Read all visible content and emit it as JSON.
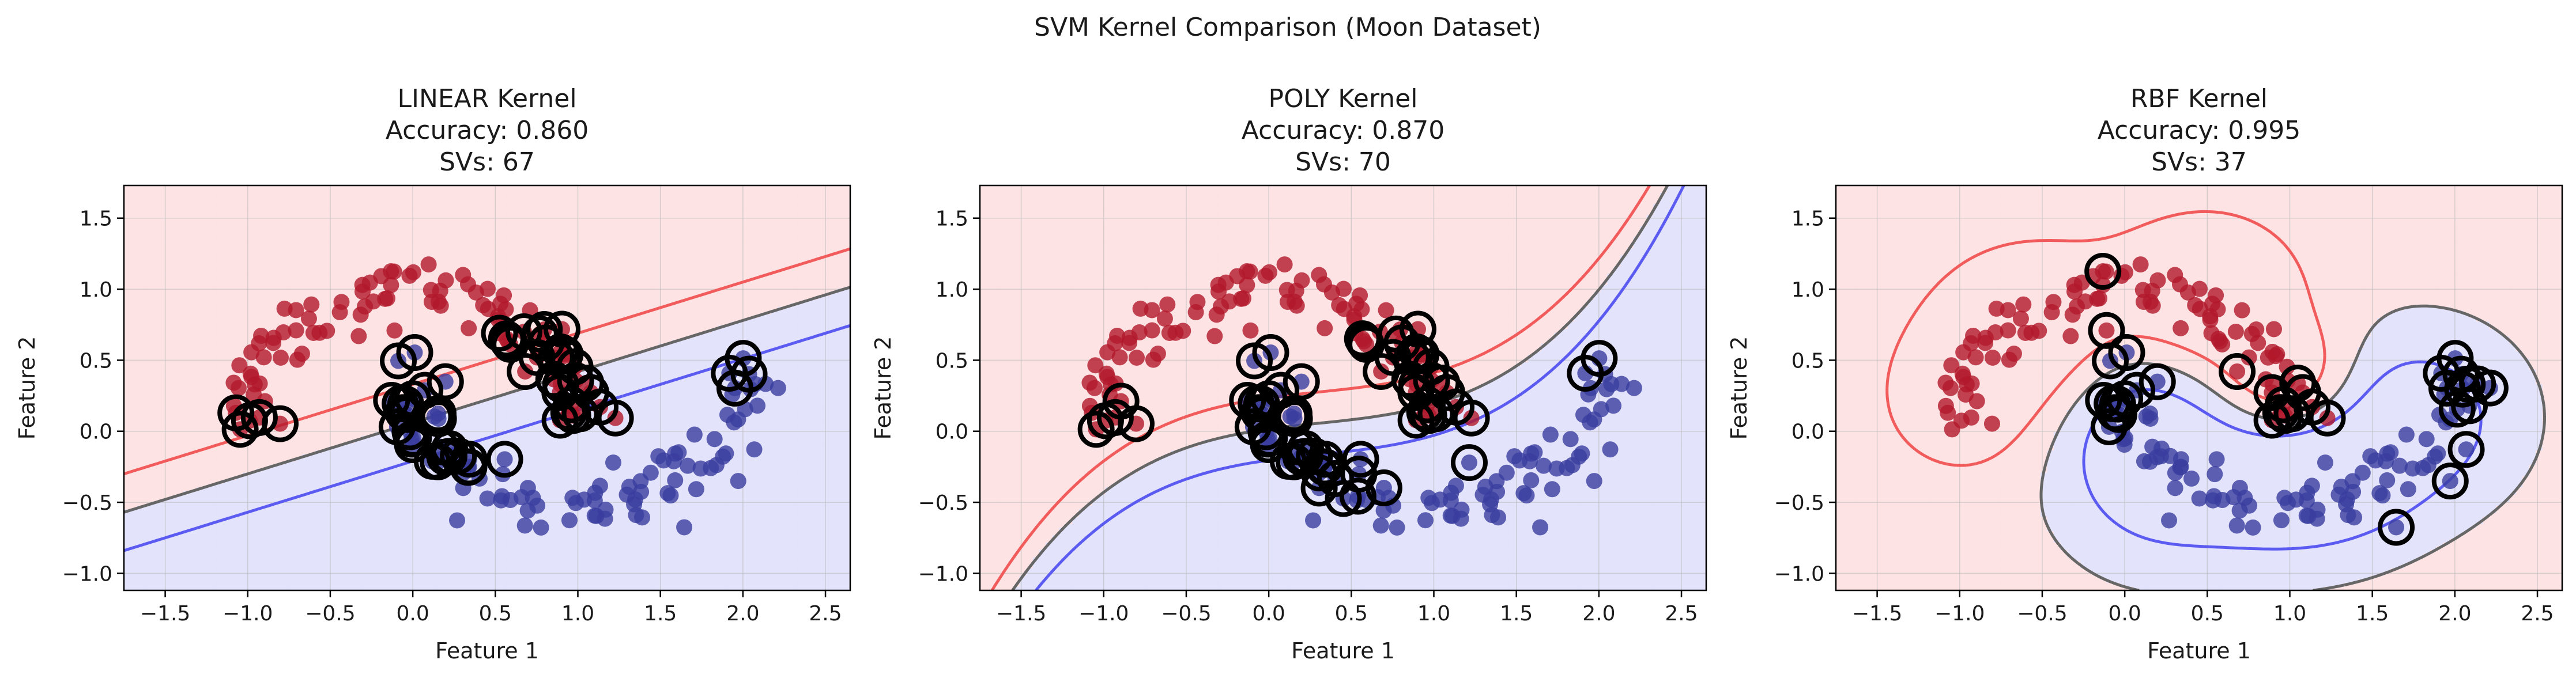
{
  "figure": {
    "suptitle": "SVM Kernel Comparison (Moon Dataset)"
  },
  "colors": {
    "class_red": "#b2182b",
    "class_blue": "#3a3d9f",
    "region_red": "#fde3e3",
    "region_blue": "#e3e3fb",
    "margin_red": "#f25b5b",
    "margin_blue": "#5b5bf2",
    "boundary": "#666666",
    "support_vector_ring": "#000000"
  },
  "chart_data": [
    {
      "type": "scatter",
      "title_lines": [
        "LINEAR Kernel",
        "Accuracy: 0.860",
        "SVs: 67"
      ],
      "xlabel": "Feature 1",
      "ylabel": "Feature 2",
      "xlim": [
        -1.75,
        2.65
      ],
      "ylim": [
        -1.12,
        1.73
      ],
      "xticks": [
        -1.5,
        -1.0,
        -0.5,
        0.0,
        0.5,
        1.0,
        1.5,
        2.0,
        2.5
      ],
      "yticks": [
        -1.0,
        -0.5,
        0.0,
        0.5,
        1.0,
        1.5
      ],
      "grid": true,
      "kernel": "linear",
      "accuracy": 0.86,
      "support_vectors": 67
    },
    {
      "type": "scatter",
      "title_lines": [
        "POLY Kernel",
        "Accuracy: 0.870",
        "SVs: 70"
      ],
      "xlabel": "Feature 1",
      "ylabel": "Feature 2",
      "xlim": [
        -1.75,
        2.65
      ],
      "ylim": [
        -1.12,
        1.73
      ],
      "xticks": [
        -1.5,
        -1.0,
        -0.5,
        0.0,
        0.5,
        1.0,
        1.5,
        2.0,
        2.5
      ],
      "yticks": [
        -1.0,
        -0.5,
        0.0,
        0.5,
        1.0,
        1.5
      ],
      "grid": true,
      "kernel": "poly",
      "accuracy": 0.87,
      "support_vectors": 70
    },
    {
      "type": "scatter",
      "title_lines": [
        "RBF Kernel",
        "Accuracy: 0.995",
        "SVs: 37"
      ],
      "xlabel": "Feature 1",
      "ylabel": "Feature 2",
      "xlim": [
        -1.75,
        2.65
      ],
      "ylim": [
        -1.12,
        1.73
      ],
      "xticks": [
        -1.5,
        -1.0,
        -0.5,
        0.0,
        0.5,
        1.0,
        1.5,
        2.0,
        2.5
      ],
      "yticks": [
        -1.0,
        -0.5,
        0.0,
        0.5,
        1.0,
        1.5
      ],
      "grid": true,
      "kernel": "rbf",
      "accuracy": 0.995,
      "support_vectors": 37
    }
  ]
}
